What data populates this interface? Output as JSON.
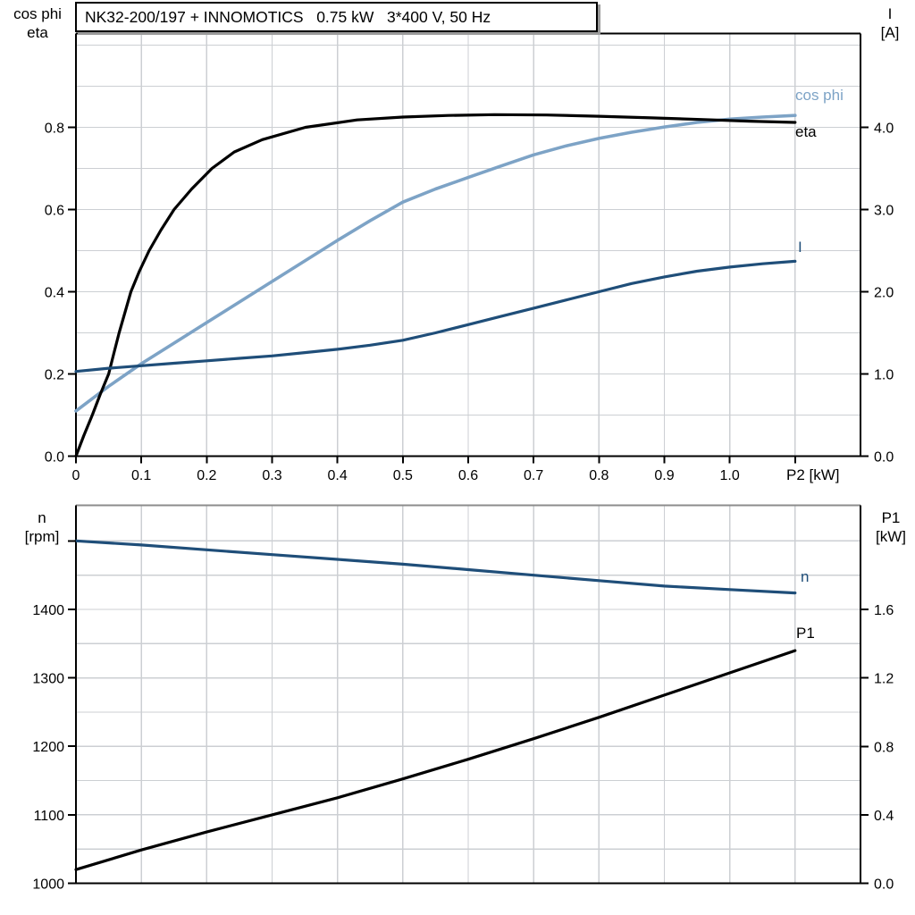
{
  "title_box": {
    "text": "NK32-200/197 + INNOMOTICS   0.75 kW   3*400 V, 50 Hz"
  },
  "colors": {
    "black": "#000000",
    "dark_blue": "#1f4e79",
    "light_blue": "#7da3c6",
    "grid": "#cccfd3",
    "frame_gray": "#8c8c8c",
    "text": "#000000"
  },
  "chart_data": [
    {
      "id": "top",
      "type": "line",
      "title": "NK32-200/197 + INNOMOTICS   0.75 kW   3*400 V, 50 Hz",
      "x_axis": {
        "label": "P2 [kW]",
        "min": 0,
        "max": 1.2,
        "tick_values": [
          0,
          0.1,
          0.2,
          0.3,
          0.4,
          0.5,
          0.6,
          0.7,
          0.8,
          0.9,
          1.0,
          1.1
        ],
        "tick_labels": [
          "0",
          "0.1",
          "0.2",
          "0.3",
          "0.4",
          "0.5",
          "0.6",
          "0.7",
          "0.8",
          "0.9",
          "1.0",
          ""
        ],
        "grid": [
          0.1,
          0.2,
          0.3,
          0.4,
          0.5,
          0.6,
          0.7,
          0.8,
          0.9,
          1.0,
          1.1
        ]
      },
      "y_left": {
        "header": [
          "cos phi",
          "eta"
        ],
        "min": 0,
        "max": 1.0283,
        "tick_values": [
          0,
          0.2,
          0.4,
          0.6,
          0.8
        ],
        "tick_labels": [
          "0.0",
          "0.2",
          "0.4",
          "0.6",
          "0.8"
        ],
        "extra_tick_values": [],
        "grid": [
          0.1,
          0.2,
          0.3,
          0.4,
          0.5,
          0.6,
          0.7,
          0.8,
          0.9,
          1.0
        ]
      },
      "y_right": {
        "header": [
          "I",
          "[A]"
        ],
        "min": 0,
        "max": 5.141,
        "tick_values": [
          0,
          1,
          2,
          3,
          4
        ],
        "tick_labels": [
          "0.0",
          "1.0",
          "2.0",
          "3.0",
          "4.0"
        ],
        "extra_tick_values": []
      },
      "legend_position": "labels-at-curve-ends",
      "series": [
        {
          "name": "cos phi",
          "axis": "left",
          "color_key": "light_blue",
          "label": "cos phi",
          "points": [
            [
              0,
              0.11
            ],
            [
              0.05,
              0.17
            ],
            [
              0.1,
              0.225
            ],
            [
              0.15,
              0.275
            ],
            [
              0.2,
              0.325
            ],
            [
              0.25,
              0.375
            ],
            [
              0.3,
              0.425
            ],
            [
              0.35,
              0.475
            ],
            [
              0.4,
              0.525
            ],
            [
              0.45,
              0.573
            ],
            [
              0.5,
              0.618
            ],
            [
              0.55,
              0.65
            ],
            [
              0.6,
              0.678
            ],
            [
              0.65,
              0.706
            ],
            [
              0.7,
              0.733
            ],
            [
              0.75,
              0.755
            ],
            [
              0.8,
              0.773
            ],
            [
              0.85,
              0.788
            ],
            [
              0.9,
              0.801
            ],
            [
              0.95,
              0.812
            ],
            [
              1.0,
              0.82
            ],
            [
              1.05,
              0.825
            ],
            [
              1.1,
              0.829
            ]
          ]
        },
        {
          "name": "eta",
          "axis": "left",
          "color_key": "black",
          "label": "eta",
          "points": [
            [
              0,
              0
            ],
            [
              0.012,
              0.05
            ],
            [
              0.025,
              0.1
            ],
            [
              0.037,
              0.15
            ],
            [
              0.05,
              0.2
            ],
            [
              0.058,
              0.25
            ],
            [
              0.066,
              0.3
            ],
            [
              0.075,
              0.35
            ],
            [
              0.084,
              0.4
            ],
            [
              0.097,
              0.45
            ],
            [
              0.112,
              0.5
            ],
            [
              0.13,
              0.55
            ],
            [
              0.15,
              0.6
            ],
            [
              0.177,
              0.65
            ],
            [
              0.208,
              0.7
            ],
            [
              0.242,
              0.74
            ],
            [
              0.285,
              0.77
            ],
            [
              0.351,
              0.8
            ],
            [
              0.43,
              0.818
            ],
            [
              0.5,
              0.825
            ],
            [
              0.57,
              0.829
            ],
            [
              0.64,
              0.831
            ],
            [
              0.72,
              0.83
            ],
            [
              0.8,
              0.827
            ],
            [
              0.88,
              0.823
            ],
            [
              0.96,
              0.819
            ],
            [
              1.03,
              0.815
            ],
            [
              1.1,
              0.812
            ]
          ]
        },
        {
          "name": "I",
          "axis": "right",
          "color_key": "dark_blue",
          "label": "I",
          "points": [
            [
              0,
              1.03
            ],
            [
              0.05,
              1.07
            ],
            [
              0.1,
              1.1
            ],
            [
              0.15,
              1.13
            ],
            [
              0.2,
              1.16
            ],
            [
              0.25,
              1.19
            ],
            [
              0.3,
              1.22
            ],
            [
              0.35,
              1.26
            ],
            [
              0.4,
              1.3
            ],
            [
              0.45,
              1.35
            ],
            [
              0.5,
              1.41
            ],
            [
              0.55,
              1.5
            ],
            [
              0.6,
              1.6
            ],
            [
              0.65,
              1.7
            ],
            [
              0.7,
              1.8
            ],
            [
              0.75,
              1.9
            ],
            [
              0.8,
              2.0
            ],
            [
              0.85,
              2.1
            ],
            [
              0.9,
              2.18
            ],
            [
              0.95,
              2.25
            ],
            [
              1.0,
              2.3
            ],
            [
              1.05,
              2.34
            ],
            [
              1.1,
              2.37
            ]
          ]
        }
      ]
    },
    {
      "id": "bottom",
      "type": "line",
      "title": "",
      "x_axis": {
        "label": "",
        "min": 0,
        "max": 1.2,
        "tick_values": [],
        "tick_labels": [],
        "grid": [
          0.1,
          0.2,
          0.3,
          0.4,
          0.5,
          0.6,
          0.7,
          0.8,
          0.9,
          1.0,
          1.1
        ]
      },
      "y_left": {
        "header": [
          "n",
          "[rpm]"
        ],
        "min": 1000,
        "max": 1552,
        "tick_values": [
          1000,
          1100,
          1200,
          1300,
          1400
        ],
        "tick_labels": [
          "1000",
          "1100",
          "1200",
          "1300",
          "1400"
        ],
        "extra_tick_values": [
          1500
        ],
        "grid": [
          1050,
          1100,
          1150,
          1200,
          1250,
          1300,
          1350,
          1400,
          1450,
          1500
        ]
      },
      "y_right": {
        "header": [
          "P1",
          "[kW]"
        ],
        "min": 0,
        "max": 2.209,
        "tick_values": [
          0,
          0.4,
          0.8,
          1.2,
          1.6
        ],
        "tick_labels": [
          "0.0",
          "0.4",
          "0.8",
          "1.2",
          "1.6"
        ],
        "extra_tick_values": []
      },
      "legend_position": "labels-at-curve-ends",
      "series": [
        {
          "name": "n",
          "axis": "left",
          "color_key": "dark_blue",
          "label": "n",
          "points": [
            [
              0,
              1500
            ],
            [
              0.1,
              1494
            ],
            [
              0.2,
              1487
            ],
            [
              0.3,
              1480
            ],
            [
              0.4,
              1473
            ],
            [
              0.5,
              1466
            ],
            [
              0.6,
              1458
            ],
            [
              0.7,
              1450
            ],
            [
              0.8,
              1442
            ],
            [
              0.9,
              1434
            ],
            [
              1.0,
              1429
            ],
            [
              1.1,
              1424
            ]
          ]
        },
        {
          "name": "P1",
          "axis": "right",
          "color_key": "black",
          "label": "P1",
          "points": [
            [
              0,
              0.08
            ],
            [
              0.1,
              0.195
            ],
            [
              0.2,
              0.3
            ],
            [
              0.3,
              0.4
            ],
            [
              0.4,
              0.5
            ],
            [
              0.5,
              0.61
            ],
            [
              0.6,
              0.725
            ],
            [
              0.7,
              0.845
            ],
            [
              0.8,
              0.97
            ],
            [
              0.9,
              1.1
            ],
            [
              1.0,
              1.23
            ],
            [
              1.1,
              1.36
            ]
          ]
        }
      ]
    }
  ]
}
